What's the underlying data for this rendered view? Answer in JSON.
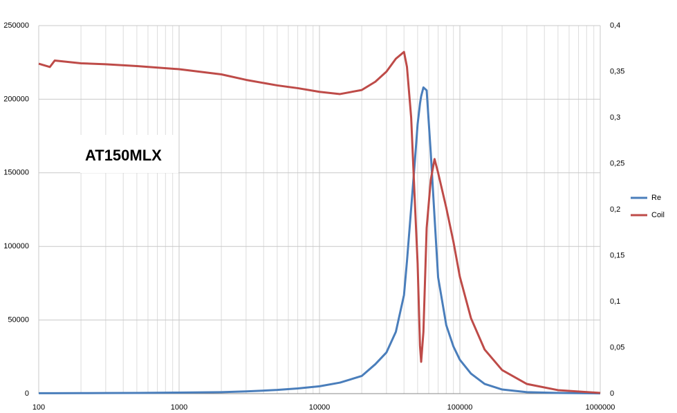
{
  "chart_data": {
    "type": "line",
    "log_x": true,
    "grid": true,
    "minor_grid": true,
    "legend": "right",
    "annotation": "AT150MLX",
    "annotation_color": "#6cbf2a",
    "x": [
      100,
      120,
      130,
      200,
      300,
      500,
      1000,
      2000,
      3000,
      5000,
      7000,
      10000,
      14000,
      20000,
      25000,
      30000,
      35000,
      40000,
      42000,
      45000,
      48000,
      50000,
      52000,
      53000,
      55000,
      58000,
      62000,
      66000,
      70000,
      80000,
      90000,
      100000,
      120000,
      150000,
      200000,
      300000,
      500000,
      1000000
    ],
    "xlim": [
      100,
      1000000
    ],
    "xticks": [
      100,
      1000,
      10000,
      100000,
      1000000
    ],
    "ylim": [
      0,
      250000
    ],
    "yticks": [
      0,
      50000,
      100000,
      150000,
      200000,
      250000
    ],
    "y2lim": [
      0,
      0.4
    ],
    "y2ticks": [
      0,
      {
        "value": 0.05,
        "label": "0,05"
      },
      {
        "value": 0.1,
        "label": "0,1"
      },
      {
        "value": 0.15,
        "label": "0,15"
      },
      {
        "value": 0.2,
        "label": "0,2"
      },
      {
        "value": 0.25,
        "label": "0,25"
      },
      {
        "value": 0.3,
        "label": "0,3"
      },
      {
        "value": 0.35,
        "label": "0,35"
      },
      {
        "value": 0.4,
        "label": "0,4"
      }
    ],
    "series": [
      {
        "name": "Re",
        "color": "#4a7ebb",
        "values": [
          300,
          300,
          300,
          350,
          400,
          500,
          700,
          1000,
          1500,
          2500,
          3500,
          5000,
          7500,
          12000,
          20000,
          28000,
          42000,
          67000,
          90000,
          126000,
          160000,
          183000,
          197000,
          202000,
          208000,
          206000,
          164000,
          120000,
          79000,
          46500,
          32000,
          23000,
          13600,
          6600,
          2800,
          1000,
          500,
          200
        ]
      },
      {
        "name": "Coil",
        "color": "#be4b48",
        "axis": "y2",
        "values": [
          0.3586,
          0.355,
          0.362,
          0.359,
          0.358,
          0.356,
          0.3526,
          0.347,
          0.341,
          0.335,
          0.332,
          0.328,
          0.3256,
          0.33,
          0.339,
          0.35,
          0.364,
          0.3714,
          0.355,
          0.3,
          0.202,
          0.142,
          0.052,
          0.0346,
          0.067,
          0.18,
          0.232,
          0.255,
          0.24,
          0.202,
          0.165,
          0.127,
          0.082,
          0.048,
          0.0256,
          0.0105,
          0.0038,
          0.0008
        ]
      }
    ]
  }
}
